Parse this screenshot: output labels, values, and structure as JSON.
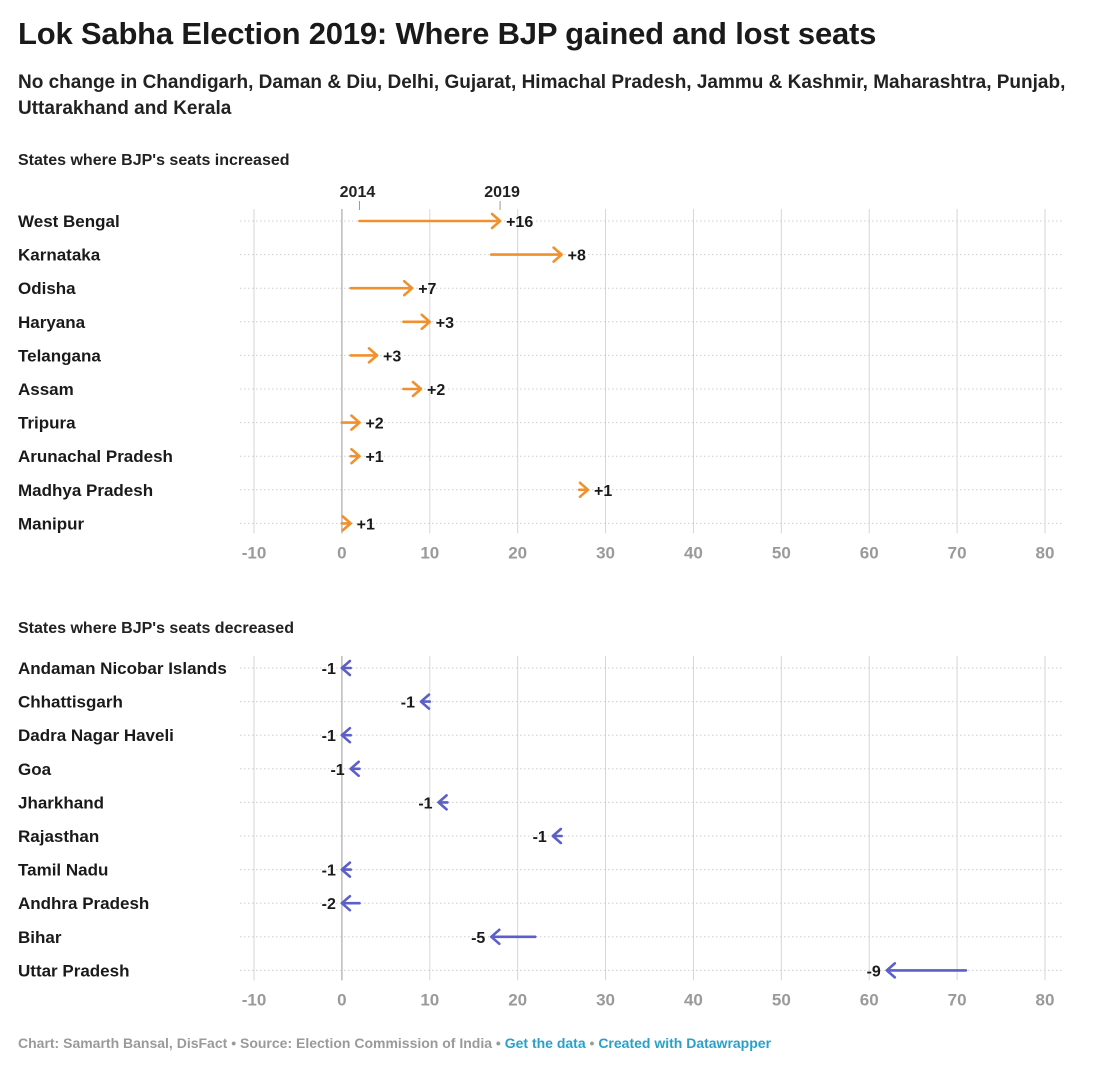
{
  "title": "Lok Sabha Election 2019: Where BJP gained and lost seats",
  "subtitle": "No change in Chandigarh, Daman & Diu, Delhi, Gujarat, Himachal Pradesh, Jammu & Kashmir, Maharashtra, Punjab, Uttarakhand and Kerala",
  "footer": {
    "credit": "Chart: Samarth Bansal, DisFact",
    "source": "Source: Election Commission of India",
    "separator": "•",
    "get_data": "Get the data",
    "created_with": "Created with Datawrapper"
  },
  "colors": {
    "increase": "#f0912d",
    "decrease": "#5c5fc8",
    "grid": "#d6d6d6",
    "zero_line": "#b5b5b5",
    "row_dots": "#cfcfcf",
    "tick_label": "#9a9a9a"
  },
  "chart_data": [
    {
      "type": "arrow",
      "title": "States where BJP's seats increased",
      "series_labels": {
        "start": "2014",
        "end": "2019"
      },
      "xlim": [
        -10,
        80
      ],
      "xticks": [
        -10,
        0,
        10,
        20,
        30,
        40,
        50,
        60,
        70,
        80
      ],
      "xtick_labels": [
        "-10",
        "0",
        "10",
        "20",
        "30",
        "40",
        "50",
        "60",
        "70",
        "80"
      ],
      "rows": [
        {
          "state": "West Bengal",
          "start": 2,
          "end": 18,
          "label": "+16"
        },
        {
          "state": "Karnataka",
          "start": 17,
          "end": 25,
          "label": "+8"
        },
        {
          "state": "Odisha",
          "start": 1,
          "end": 8,
          "label": "+7"
        },
        {
          "state": "Haryana",
          "start": 7,
          "end": 10,
          "label": "+3"
        },
        {
          "state": "Telangana",
          "start": 1,
          "end": 4,
          "label": "+3"
        },
        {
          "state": "Assam",
          "start": 7,
          "end": 9,
          "label": "+2"
        },
        {
          "state": "Tripura",
          "start": 0,
          "end": 2,
          "label": "+2"
        },
        {
          "state": "Arunachal Pradesh",
          "start": 1,
          "end": 2,
          "label": "+1"
        },
        {
          "state": "Madhya Pradesh",
          "start": 27,
          "end": 28,
          "label": "+1"
        },
        {
          "state": "Manipur",
          "start": 0,
          "end": 1,
          "label": "+1"
        }
      ]
    },
    {
      "type": "arrow",
      "title": "States where BJP's seats decreased",
      "xlim": [
        -10,
        80
      ],
      "xticks": [
        -10,
        0,
        10,
        20,
        30,
        40,
        50,
        60,
        70,
        80
      ],
      "xtick_labels": [
        "-10",
        "0",
        "10",
        "20",
        "30",
        "40",
        "50",
        "60",
        "70",
        "80"
      ],
      "rows": [
        {
          "state": "Andaman Nicobar Islands",
          "start": 1,
          "end": 0,
          "label": "-1"
        },
        {
          "state": "Chhattisgarh",
          "start": 10,
          "end": 9,
          "label": "-1"
        },
        {
          "state": "Dadra Nagar Haveli",
          "start": 1,
          "end": 0,
          "label": "-1"
        },
        {
          "state": "Goa",
          "start": 2,
          "end": 1,
          "label": "-1"
        },
        {
          "state": "Jharkhand",
          "start": 12,
          "end": 11,
          "label": "-1"
        },
        {
          "state": "Rajasthan",
          "start": 25,
          "end": 24,
          "label": "-1"
        },
        {
          "state": "Tamil Nadu",
          "start": 1,
          "end": 0,
          "label": "-1"
        },
        {
          "state": "Andhra Pradesh",
          "start": 2,
          "end": 0,
          "label": "-2"
        },
        {
          "state": "Bihar",
          "start": 22,
          "end": 17,
          "label": "-5"
        },
        {
          "state": "Uttar Pradesh",
          "start": 71,
          "end": 62,
          "label": "-9"
        }
      ]
    }
  ]
}
